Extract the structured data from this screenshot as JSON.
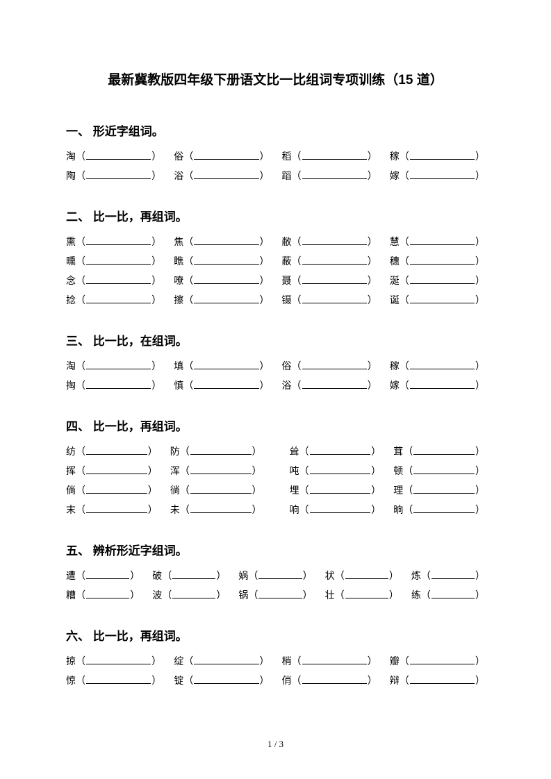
{
  "title": "最新冀教版四年级下册语文比一比组词专项训练（15 道）",
  "footer": "1 / 3",
  "sections": [
    {
      "head": "一、 形近字组词。",
      "cols": 4,
      "rows": [
        [
          "淘",
          "俗",
          "稻",
          "稼"
        ],
        [
          "陶",
          "浴",
          "蹈",
          "嫁"
        ]
      ]
    },
    {
      "head": "二、 比一比，再组词。",
      "cols": 4,
      "rows": [
        [
          "熏",
          "焦",
          "敝",
          "慧"
        ],
        [
          "曛",
          "瞧",
          "蔽",
          "穗"
        ],
        [
          "念",
          "嘹",
          "聂",
          "涎"
        ],
        [
          "捻",
          "擦",
          "镊",
          "诞"
        ]
      ]
    },
    {
      "head": "三、 比一比，在组词。",
      "cols": 4,
      "rows": [
        [
          "淘",
          "填",
          "俗",
          "稼"
        ],
        [
          "掏",
          "慎",
          "浴",
          "嫁"
        ]
      ]
    },
    {
      "head": "四、 比一比，再组词。",
      "cols": 4,
      "wide": true,
      "rows": [
        [
          "纺",
          "防",
          "耸",
          "茸"
        ],
        [
          "挥",
          "浑",
          "吨",
          "顿"
        ],
        [
          "倘",
          "徜",
          "埋",
          "理"
        ],
        [
          "末",
          "未",
          "响",
          "晌"
        ]
      ]
    },
    {
      "head": "五、 辨析形近字组词。",
      "cols": 5,
      "rows": [
        [
          "遭",
          "破",
          "娲",
          "状",
          "炼"
        ],
        [
          "糟",
          "波",
          "锅",
          "壮",
          "练"
        ]
      ]
    },
    {
      "head": "六、 比一比，再组词。",
      "cols": 4,
      "rows": [
        [
          "掠",
          "绽",
          "梢",
          "瓣"
        ],
        [
          "惊",
          "锭",
          "俏",
          "辩"
        ]
      ]
    }
  ]
}
